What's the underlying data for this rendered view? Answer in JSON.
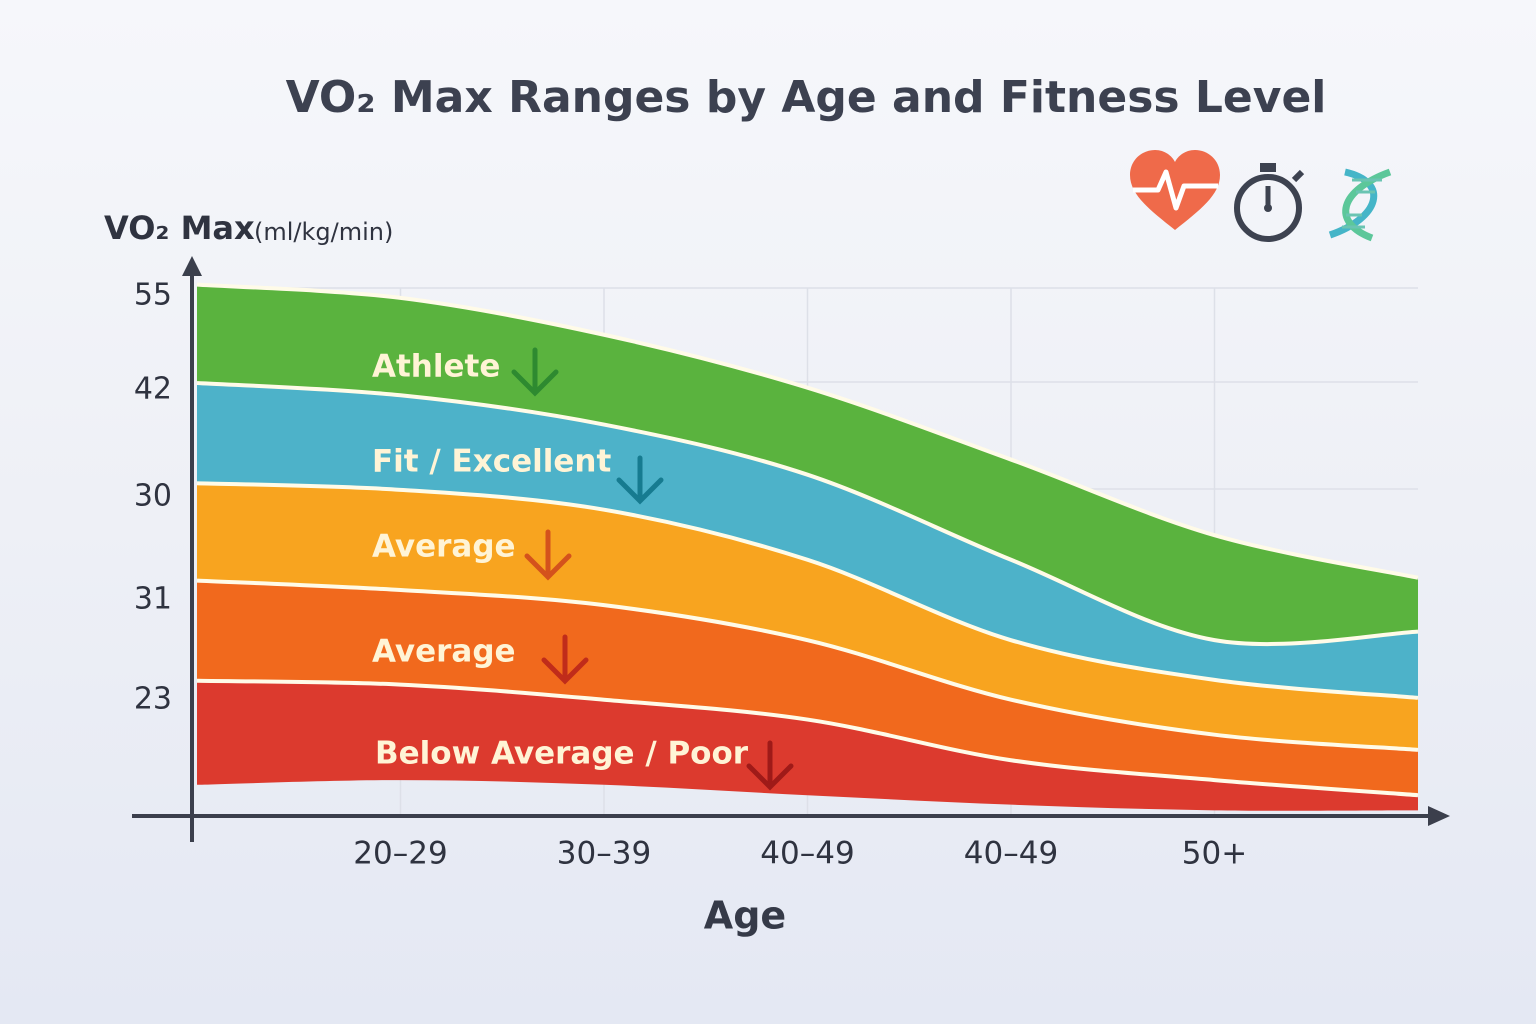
{
  "chart_data": {
    "type": "stacked-range-area",
    "title": "VO₂ Max Ranges by Age and Fitness Level",
    "y_label": "VO₂ Max",
    "y_unit": "(ml/kg/min)",
    "x_label": "Age",
    "y_labels": [
      "55",
      "42",
      "30",
      "31",
      "23"
    ],
    "ylim": [
      0,
      55
    ],
    "categories": [
      null,
      "20–29",
      "30–39",
      "40–49",
      "40–49",
      "50+",
      null
    ],
    "series": [
      {
        "name": "Athlete",
        "color": "#5ab33e",
        "low": [
          45.8,
          44.5,
          41.4,
          36.1,
          27.1,
          18.6,
          19.5
        ],
        "high": [
          56.2,
          54.8,
          50.9,
          45.3,
          37.7,
          29.7,
          25.2
        ]
      },
      {
        "name": "Fit / Excellent",
        "color": "#4db2c9",
        "low": [
          35.2,
          34.5,
          32.4,
          27.1,
          18.6,
          14.4,
          12.5
        ],
        "high": [
          45.8,
          44.5,
          41.4,
          36.1,
          27.1,
          18.6,
          19.5
        ]
      },
      {
        "name": "Average",
        "color": "#f8a41f",
        "low": [
          24.9,
          23.9,
          22.3,
          18.6,
          12.3,
          8.6,
          7.0
        ],
        "high": [
          35.2,
          34.5,
          32.4,
          27.1,
          18.6,
          14.4,
          12.5
        ]
      },
      {
        "name": "Average",
        "color": "#f1691d",
        "low": [
          14.3,
          13.9,
          12.3,
          10.2,
          5.9,
          3.8,
          2.2
        ],
        "high": [
          24.9,
          23.9,
          22.3,
          18.6,
          12.3,
          8.6,
          7.0
        ]
      },
      {
        "name": "Below Average / Poor",
        "color": "#dc3a2e",
        "low": [
          3.3,
          3.8,
          3.3,
          2.2,
          1.2,
          0.6,
          0.6
        ],
        "high": [
          14.3,
          13.9,
          12.3,
          10.2,
          5.9,
          3.8,
          2.2
        ]
      }
    ]
  }
}
